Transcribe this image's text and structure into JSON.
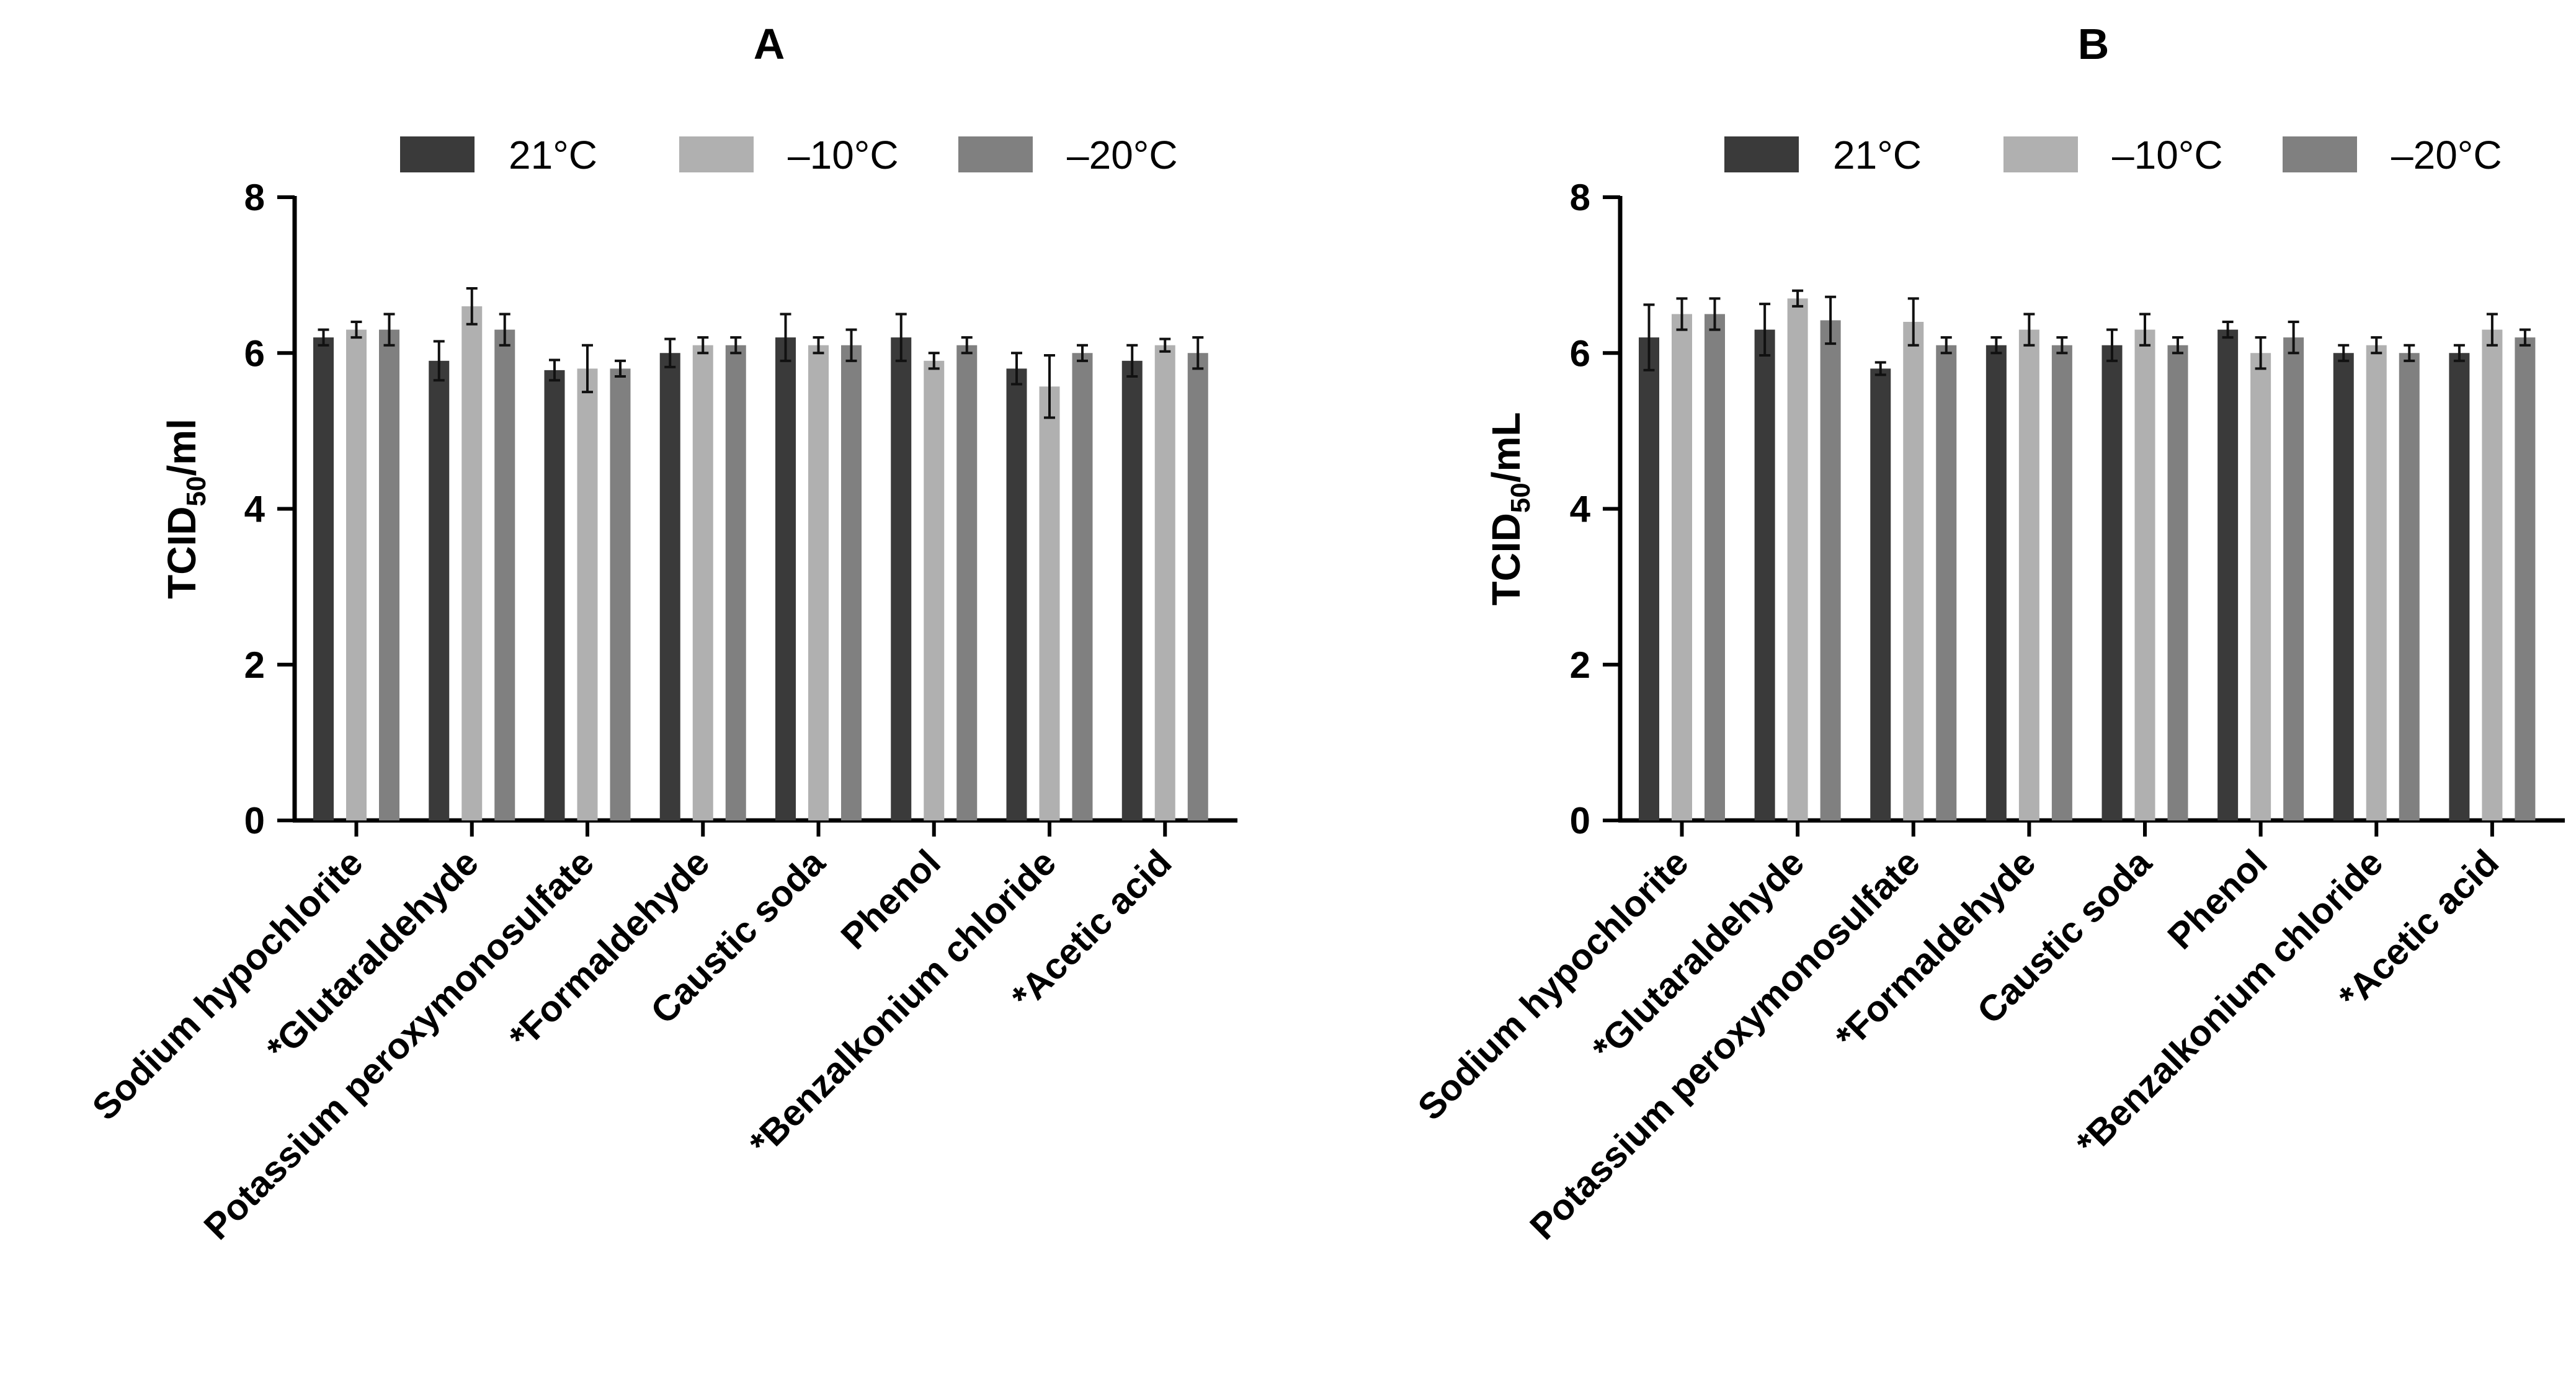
{
  "colors": {
    "21°C": "#3a3a3a",
    "–10°C": "#b0b0b0",
    "–20°C": "#808080",
    "axis": "#000000",
    "errorbar": "#111111"
  },
  "chart_data": [
    {
      "type": "bar",
      "title": "A",
      "ylabel": {
        "main": "TCID",
        "sub": "50",
        "unit": "/ml"
      },
      "xlabel": "",
      "ylim": [
        0,
        8
      ],
      "yticks": [
        "0",
        "2",
        "4",
        "6",
        "8"
      ],
      "legend_position": "top",
      "categories": [
        "Sodium hypochlorite",
        "*Glutaraldehyde",
        "Potassium peroxymonosulfate",
        "*Formaldehyde",
        "Caustic soda",
        "Phenol",
        "*Benzalkonium chloride",
        "*Acetic acid"
      ],
      "series": [
        {
          "name": "21°C",
          "values": [
            6.2,
            5.9,
            5.78,
            6.0,
            6.2,
            6.2,
            5.8,
            5.9
          ],
          "errors": [
            0.1,
            0.25,
            0.13,
            0.18,
            0.3,
            0.3,
            0.2,
            0.2
          ]
        },
        {
          "name": "–10°C",
          "values": [
            6.3,
            6.6,
            5.8,
            6.1,
            6.1,
            5.9,
            5.57,
            6.1
          ],
          "errors": [
            0.1,
            0.23,
            0.3,
            0.1,
            0.1,
            0.1,
            0.4,
            0.08
          ]
        },
        {
          "name": "–20°C",
          "values": [
            6.3,
            6.3,
            5.8,
            6.1,
            6.1,
            6.1,
            6.0,
            6.0
          ],
          "errors": [
            0.2,
            0.2,
            0.1,
            0.1,
            0.2,
            0.1,
            0.1,
            0.2
          ]
        }
      ]
    },
    {
      "type": "bar",
      "title": "B",
      "ylabel": {
        "main": "TCID",
        "sub": "50",
        "unit": "/mL"
      },
      "xlabel": "",
      "ylim": [
        0,
        8
      ],
      "yticks": [
        "0",
        "2",
        "4",
        "6",
        "8"
      ],
      "legend_position": "top",
      "categories": [
        "Sodium hypochlorite",
        "*Glutaraldehyde",
        "Potassium peroxymonosulfate",
        "*Formaldehyde",
        "Caustic soda",
        "Phenol",
        "*Benzalkonium chloride",
        "*Acetic acid"
      ],
      "series": [
        {
          "name": "21°C",
          "values": [
            6.2,
            6.3,
            5.8,
            6.1,
            6.1,
            6.3,
            6.0,
            6.0
          ],
          "errors": [
            0.42,
            0.33,
            0.08,
            0.1,
            0.2,
            0.1,
            0.1,
            0.1
          ]
        },
        {
          "name": "–10°C",
          "values": [
            6.5,
            6.7,
            6.4,
            6.3,
            6.3,
            6.0,
            6.1,
            6.3
          ],
          "errors": [
            0.2,
            0.1,
            0.3,
            0.2,
            0.2,
            0.2,
            0.1,
            0.2
          ]
        },
        {
          "name": "–20°C",
          "values": [
            6.5,
            6.42,
            6.1,
            6.1,
            6.1,
            6.2,
            6.0,
            6.2
          ],
          "errors": [
            0.2,
            0.3,
            0.1,
            0.1,
            0.1,
            0.2,
            0.1,
            0.1
          ]
        }
      ]
    }
  ]
}
